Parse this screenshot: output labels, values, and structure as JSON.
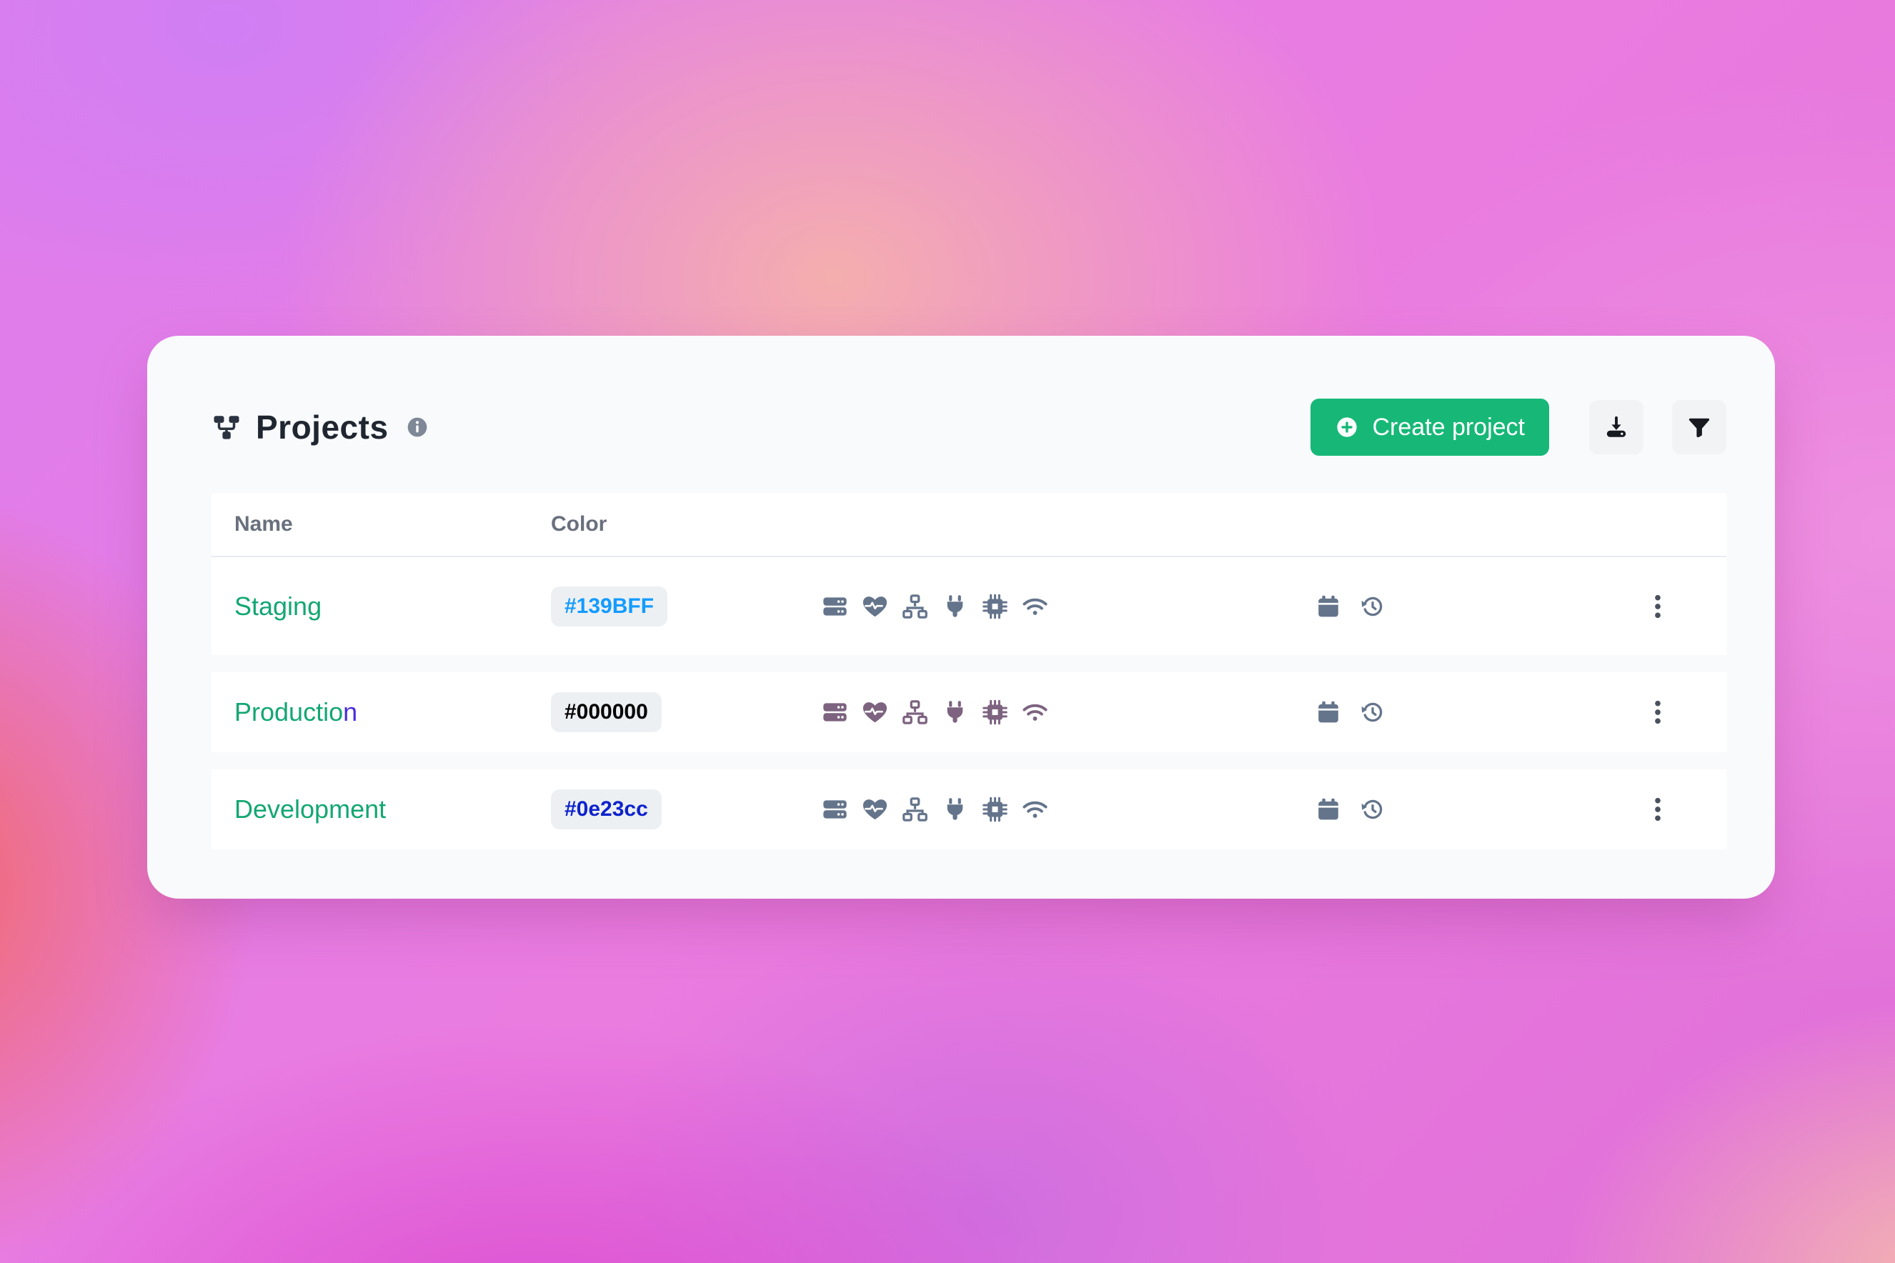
{
  "header": {
    "title": "Projects",
    "title_icon": "sitemap",
    "info_icon": "info"
  },
  "toolbar": {
    "create_label": "Create project",
    "create_icon": "plus-circle",
    "download_icon": "download",
    "filter_icon": "filter"
  },
  "colors": {
    "accent_green": "#17b877",
    "name_green": "#13a772",
    "name_purple": "#4a2de0",
    "icon_slate": "#64748b",
    "icon_mauve": "#7d6380",
    "badge_bg": "#edf0f3"
  },
  "table": {
    "columns": [
      {
        "label": "Name"
      },
      {
        "label": "Color"
      }
    ],
    "rows": [
      {
        "name_parts": [
          {
            "text": "Staging",
            "color": "#13a772"
          }
        ],
        "color_label": "#139BFF",
        "color_value": "#139BFF",
        "feature_icons": [
          "server",
          "heart-pulse",
          "sitemap-nodes",
          "plug",
          "chip",
          "wifi"
        ],
        "feature_color": "#64748b",
        "action_icons": [
          "calendar",
          "history"
        ],
        "menu_icon": "kebab"
      },
      {
        "name_parts": [
          {
            "text": "Productio",
            "color": "#13a772"
          },
          {
            "text": "n",
            "color": "#4a2de0"
          }
        ],
        "color_label": "#000000",
        "color_value": "#000000",
        "feature_icons": [
          "server",
          "heart-pulse",
          "sitemap-nodes",
          "plug",
          "chip",
          "wifi"
        ],
        "feature_color": "#7d6380",
        "action_icons": [
          "calendar",
          "history"
        ],
        "menu_icon": "kebab"
      },
      {
        "name_parts": [
          {
            "text": "Development",
            "color": "#13a772"
          }
        ],
        "color_label": "#0e23cc",
        "color_value": "#0e23cc",
        "feature_icons": [
          "server",
          "heart-pulse",
          "sitemap-nodes",
          "plug",
          "chip",
          "wifi"
        ],
        "feature_color": "#64748b",
        "action_icons": [
          "calendar",
          "history"
        ],
        "menu_icon": "kebab"
      }
    ]
  }
}
